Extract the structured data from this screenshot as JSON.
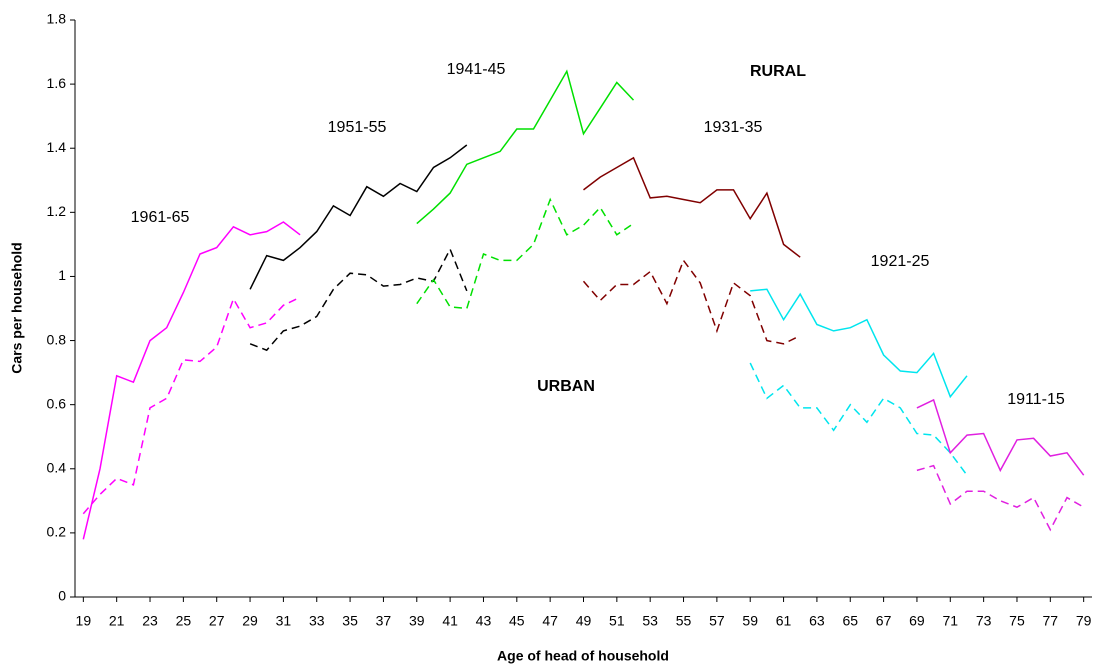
{
  "chart_data": {
    "type": "line",
    "xlabel": "Age of head of household",
    "ylabel": "Cars per household",
    "xlim": [
      18.5,
      79.5
    ],
    "xticks": [
      19,
      21,
      23,
      25,
      27,
      29,
      31,
      33,
      35,
      37,
      39,
      41,
      43,
      45,
      47,
      49,
      51,
      53,
      55,
      57,
      59,
      61,
      63,
      65,
      67,
      69,
      71,
      73,
      75,
      77,
      79
    ],
    "ylim": [
      0,
      1.8
    ],
    "yticks": [
      0,
      0.2,
      0.4,
      0.6,
      0.8,
      1,
      1.2,
      1.4,
      1.6,
      1.8
    ],
    "annotations": [
      "RURAL",
      "URBAN"
    ],
    "series": [
      {
        "name": "1961-65",
        "color": "#ff00ff",
        "dashed": false,
        "x": [
          19,
          20,
          21,
          22,
          23,
          24,
          25,
          26,
          27,
          28,
          29,
          30,
          31,
          32
        ],
        "values": [
          0.18,
          0.4,
          0.69,
          0.67,
          0.8,
          0.84,
          0.95,
          1.07,
          1.09,
          1.155,
          1.13,
          1.14,
          1.17,
          1.13
        ]
      },
      {
        "color": "#ff00ff",
        "dashed": true,
        "x": [
          19,
          20,
          21,
          22,
          23,
          24,
          25,
          26,
          27,
          28,
          29,
          30,
          31,
          32
        ],
        "values": [
          0.26,
          0.32,
          0.37,
          0.35,
          0.59,
          0.62,
          0.74,
          0.735,
          0.78,
          0.93,
          0.84,
          0.855,
          0.91,
          0.935
        ]
      },
      {
        "name": "1951-55",
        "color": "#000000",
        "dashed": false,
        "x": [
          29,
          30,
          31,
          32,
          33,
          34,
          35,
          36,
          37,
          38,
          39,
          40,
          41,
          42
        ],
        "values": [
          0.96,
          1.065,
          1.05,
          1.09,
          1.14,
          1.22,
          1.19,
          1.28,
          1.25,
          1.29,
          1.265,
          1.34,
          1.37,
          1.41
        ]
      },
      {
        "color": "#000000",
        "dashed": true,
        "x": [
          29,
          30,
          31,
          32,
          33,
          34,
          35,
          36,
          37,
          38,
          39,
          40,
          41,
          42
        ],
        "values": [
          0.79,
          0.77,
          0.83,
          0.845,
          0.875,
          0.96,
          1.01,
          1.005,
          0.97,
          0.975,
          0.995,
          0.985,
          1.085,
          0.955
        ]
      },
      {
        "name": "1941-45",
        "color": "#00e000",
        "dashed": false,
        "x": [
          39,
          40,
          41,
          42,
          43,
          44,
          45,
          46,
          47,
          48,
          49,
          50,
          51,
          52
        ],
        "values": [
          1.165,
          1.21,
          1.26,
          1.35,
          1.37,
          1.39,
          1.46,
          1.46,
          1.55,
          1.64,
          1.445,
          1.525,
          1.605,
          1.55
        ]
      },
      {
        "color": "#00e000",
        "dashed": true,
        "x": [
          39,
          40,
          41,
          42,
          43,
          44,
          45,
          46,
          47,
          48,
          49,
          50,
          51,
          52
        ],
        "values": [
          0.915,
          0.99,
          0.905,
          0.9,
          1.07,
          1.05,
          1.05,
          1.1,
          1.24,
          1.13,
          1.16,
          1.215,
          1.13,
          1.165
        ]
      },
      {
        "name": "1931-35",
        "color": "#800000",
        "dashed": false,
        "x": [
          49,
          50,
          51,
          52,
          53,
          54,
          55,
          56,
          57,
          58,
          59,
          60,
          61,
          62
        ],
        "values": [
          1.27,
          1.31,
          1.34,
          1.37,
          1.245,
          1.25,
          1.24,
          1.23,
          1.27,
          1.27,
          1.18,
          1.26,
          1.1,
          1.06
        ]
      },
      {
        "color": "#800000",
        "dashed": true,
        "x": [
          49,
          50,
          51,
          52,
          53,
          54,
          55,
          56,
          57,
          58,
          59,
          60,
          61,
          62
        ],
        "values": [
          0.985,
          0.925,
          0.975,
          0.975,
          1.015,
          0.915,
          1.05,
          0.98,
          0.83,
          0.98,
          0.94,
          0.8,
          0.79,
          0.815
        ]
      },
      {
        "name": "1921-25",
        "color": "#00e5ee",
        "dashed": false,
        "x": [
          59,
          60,
          61,
          62,
          63,
          64,
          65,
          66,
          67,
          68,
          69,
          70,
          71,
          72
        ],
        "values": [
          0.955,
          0.96,
          0.865,
          0.945,
          0.85,
          0.83,
          0.84,
          0.865,
          0.755,
          0.705,
          0.7,
          0.76,
          0.625,
          0.69
        ]
      },
      {
        "color": "#00e5ee",
        "dashed": true,
        "x": [
          59,
          60,
          61,
          62,
          63,
          64,
          65,
          66,
          67,
          68,
          69,
          70,
          71,
          72
        ],
        "values": [
          0.73,
          0.62,
          0.66,
          0.59,
          0.59,
          0.52,
          0.6,
          0.545,
          0.62,
          0.59,
          0.51,
          0.505,
          0.45,
          0.38
        ]
      },
      {
        "name": "1911-15",
        "color": "#e020e0",
        "dashed": false,
        "x": [
          69,
          70,
          71,
          72,
          73,
          74,
          75,
          76,
          77,
          78,
          79
        ],
        "values": [
          0.59,
          0.615,
          0.45,
          0.505,
          0.51,
          0.395,
          0.49,
          0.495,
          0.44,
          0.45,
          0.38
        ]
      },
      {
        "color": "#e020e0",
        "dashed": true,
        "x": [
          69,
          70,
          71,
          72,
          73,
          74,
          75,
          76,
          77,
          78,
          79
        ],
        "values": [
          0.395,
          0.41,
          0.29,
          0.33,
          0.33,
          0.3,
          0.28,
          0.31,
          0.21,
          0.31,
          0.28
        ]
      }
    ]
  }
}
